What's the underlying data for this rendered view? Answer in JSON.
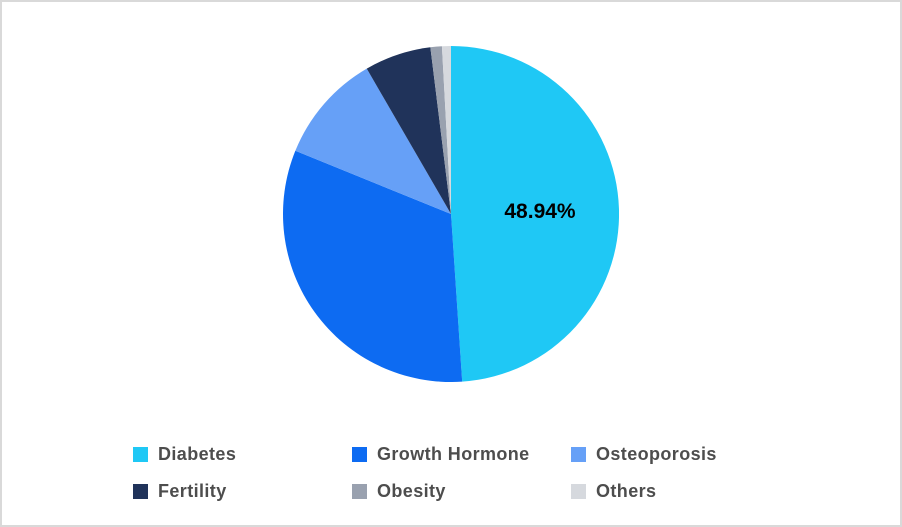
{
  "page": {
    "background": "#ffffff",
    "border_color": "#d9d9d9"
  },
  "chart_data": {
    "type": "pie",
    "title": "",
    "categories": [
      "Diabetes",
      "Growth Hormone",
      "Osteoporosis",
      "Fertility",
      "Obesity",
      "Others"
    ],
    "values": [
      48.94,
      32.2,
      10.5,
      6.4,
      1.1,
      0.86
    ],
    "colors": [
      "#1fc8f5",
      "#0d6bf2",
      "#66a0f7",
      "#20335a",
      "#99a1af",
      "#d6d9de"
    ],
    "start_angle_deg": 0,
    "direction": "clockwise",
    "grid": false,
    "legend_position": "bottom",
    "legend_text_color": "#4d4d4d",
    "data_labels": [
      {
        "slice": "Diabetes",
        "text": "48.94%",
        "color": "#000000"
      }
    ]
  }
}
